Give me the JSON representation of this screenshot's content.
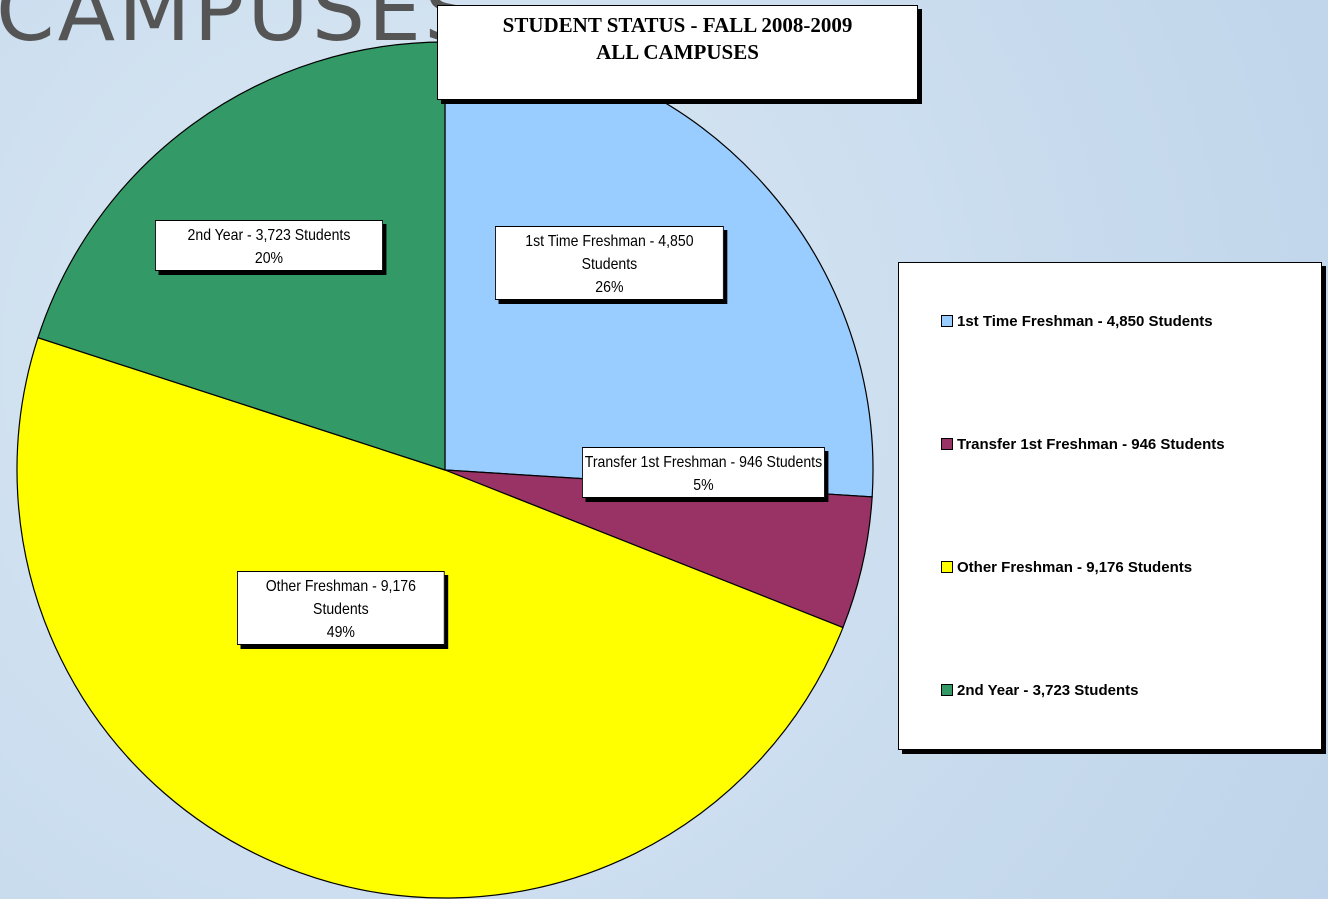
{
  "slide_title": "CAMPUSES",
  "chart_data": {
    "type": "pie",
    "title": "STUDENT STATUS - FALL 2008-2009",
    "subtitle": "ALL CAMPUSES",
    "categories": [
      "1st Time Freshman - 4,850 Students",
      "Transfer 1st Freshman - 946 Students",
      "Other Freshman - 9,176 Students",
      "2nd Year - 3,723 Students"
    ],
    "values": [
      26,
      5,
      49,
      20
    ],
    "value_labels": [
      "26%",
      "5%",
      "49%",
      "20%"
    ],
    "colors": [
      "#99ccff",
      "#993366",
      "#ffff00",
      "#339966"
    ],
    "legend": "right"
  }
}
